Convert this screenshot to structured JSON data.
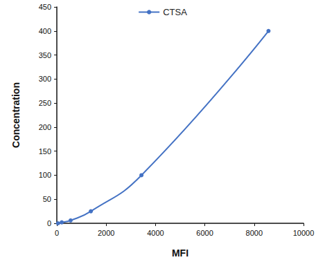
{
  "chart_data": {
    "type": "line",
    "x_label": "MFI",
    "y_label": "Concentration",
    "x": [
      50,
      200,
      560,
      1380,
      3430,
      8580
    ],
    "series": [
      {
        "name": "CTSA",
        "color": "#4472c4",
        "values": [
          0,
          2,
          6,
          25,
          100,
          400
        ],
        "marker": "circle",
        "line_style": "solid"
      }
    ],
    "xlim": [
      0,
      10000
    ],
    "xticks": [
      0,
      2000,
      4000,
      6000,
      8000,
      10000
    ],
    "ylim": [
      0,
      450
    ],
    "yticks": [
      0,
      50,
      100,
      150,
      200,
      250,
      300,
      350,
      400,
      450
    ],
    "grid": false,
    "legend": "top"
  }
}
